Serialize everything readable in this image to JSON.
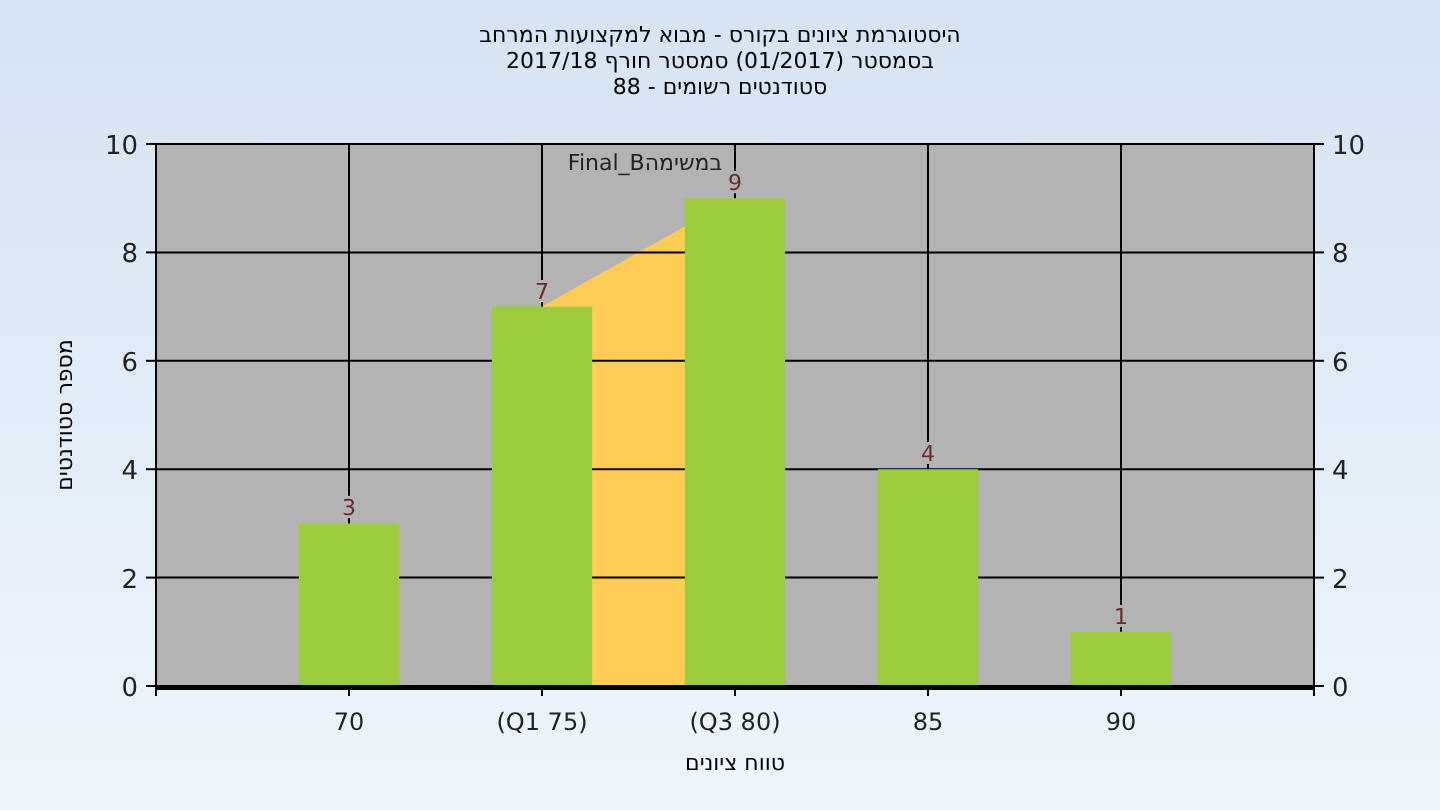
{
  "chart_data": {
    "type": "bar",
    "title": "היסטוגרמת ציונים בקורס - מבוא למקצועות המרחב",
    "subtitle": "בסמסטר  (01/2017)  סמסטר חורף 2017/18\nסטודנטים רשומים - 88",
    "xlabel": "טווח ציונים",
    "ylabel": "מספר סטודנטים",
    "annotations": [
      "Final_Bבמשימה"
    ],
    "categories": [
      "70",
      "(Q1 75)",
      "(Q3 80)",
      "85",
      "90"
    ],
    "series": [
      {
        "type": "area",
        "color": "#ffcc55",
        "values": [
          null,
          7,
          9,
          null,
          null
        ]
      },
      {
        "color": "#9ccc3c",
        "values": [
          3,
          7,
          9,
          4,
          1
        ],
        "value_labels": [
          "3",
          "7",
          "9",
          "4",
          "1"
        ]
      }
    ],
    "ylim": [
      0,
      10
    ],
    "yticks": [
      0,
      2,
      4,
      6,
      8,
      10
    ],
    "y2lim": [
      0,
      10
    ],
    "y2ticks": [
      0,
      2,
      4,
      6,
      8,
      10
    ],
    "grid": true
  }
}
